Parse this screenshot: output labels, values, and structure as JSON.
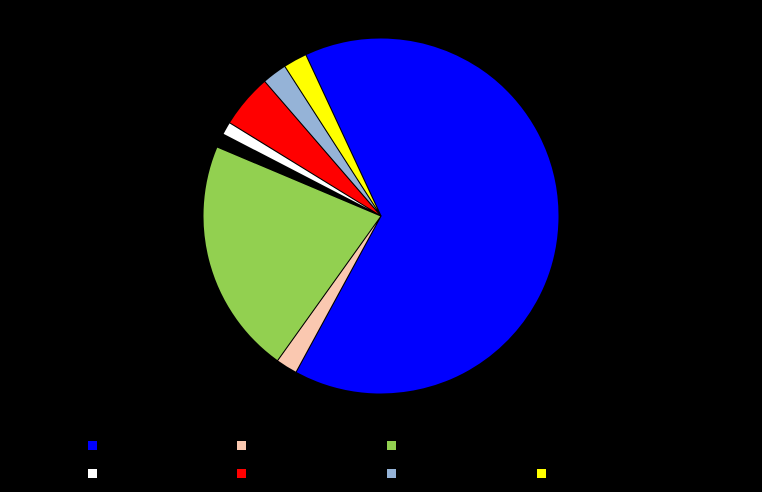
{
  "chart_data": {
    "type": "pie",
    "title": "",
    "slices": [
      {
        "name": "",
        "value": 66.5,
        "color": "#0000ff"
      },
      {
        "name": "",
        "value": 2.0,
        "color": "#fac8b0"
      },
      {
        "name": "",
        "value": 22.0,
        "color": "#92d050"
      },
      {
        "name": "",
        "value": 1.3,
        "color": "#000000"
      },
      {
        "name": "",
        "value": 1.2,
        "color": "#ffffff"
      },
      {
        "name": "",
        "value": 5.0,
        "color": "#ff0000"
      },
      {
        "name": "",
        "value": 2.3,
        "color": "#95b3d7"
      },
      {
        "name": "",
        "value": 2.2,
        "color": "#ffff00"
      }
    ],
    "legend": "bottom"
  }
}
